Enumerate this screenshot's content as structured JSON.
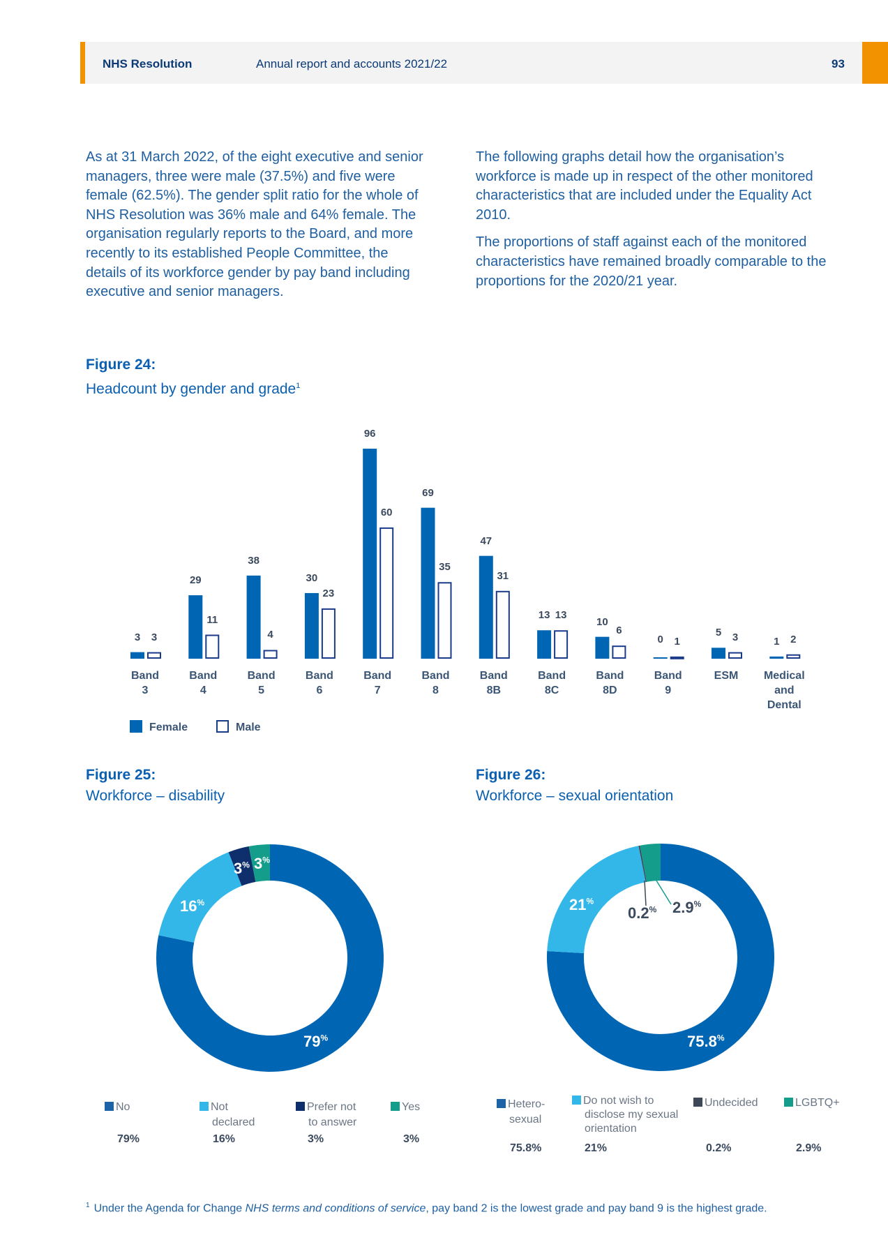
{
  "header": {
    "org": "NHS Resolution",
    "title": "Annual report and accounts 2021/22",
    "page": "93"
  },
  "intro": {
    "left": "As at 31 March 2022, of the eight executive and senior managers, three were male (37.5%) and five were female (62.5%). The gender split ratio for the whole of NHS Resolution was 36% male and 64% female. The organisation regularly reports to the Board, and more recently to its established People Committee, the details of its workforce gender by pay band including executive and senior managers.",
    "right1": "The following graphs detail how the organisation’s workforce is made up in respect of the other monitored characteristics that are included under the Equality Act 2010.",
    "right2": "The proportions of staff against each of the monitored characteristics have remained broadly comparable to the proportions for the 2020/21 year."
  },
  "fig24": {
    "label": "Figure 24:",
    "title": "Headcount by gender and grade",
    "sup": "1"
  },
  "fig25": {
    "label": "Figure 25:",
    "title": "Workforce – disability"
  },
  "fig26": {
    "label": "Figure 26:",
    "title": "Workforce – sexual orientation"
  },
  "chart_data": [
    {
      "type": "bar",
      "categories": [
        [
          "Band",
          "3"
        ],
        [
          "Band",
          "4"
        ],
        [
          "Band",
          "5"
        ],
        [
          "Band",
          "6"
        ],
        [
          "Band",
          "7"
        ],
        [
          "Band",
          "8"
        ],
        [
          "Band",
          "8B"
        ],
        [
          "Band",
          "8C"
        ],
        [
          "Band",
          "8D"
        ],
        [
          "Band",
          "9"
        ],
        [
          "ESM"
        ],
        [
          "Medical",
          "and",
          "Dental"
        ]
      ],
      "series": [
        {
          "name": "Female",
          "values": [
            3,
            29,
            38,
            30,
            96,
            69,
            47,
            13,
            10,
            0,
            5,
            1
          ],
          "color": "#0066b3",
          "fill": "solid"
        },
        {
          "name": "Male",
          "values": [
            3,
            11,
            4,
            23,
            60,
            35,
            31,
            13,
            6,
            1,
            3,
            2
          ],
          "color": "#1a3a8a",
          "fill": "outline"
        }
      ],
      "ylim": [
        0,
        96
      ],
      "legend": "bottom-left",
      "grid": false
    },
    {
      "type": "pie",
      "donut": true,
      "labels": [
        "No",
        "Not declared",
        "Prefer not to answer",
        "Yes"
      ],
      "values": [
        79,
        16,
        3,
        3
      ],
      "display": [
        "79%",
        "16%",
        "3%",
        "3%"
      ],
      "colors": [
        "#0066b3",
        "#33b7e9",
        "#0e2f6b",
        "#139d8a"
      ]
    },
    {
      "type": "pie",
      "donut": true,
      "labels": [
        "Hetero-sexual",
        "Do not wish to disclose my sexual orientation",
        "Undecided",
        "LGBTQ+"
      ],
      "values": [
        75.8,
        21,
        0.2,
        2.9
      ],
      "display": [
        "75.8%",
        "21%",
        "0.2%",
        "2.9%"
      ],
      "colors": [
        "#0066b3",
        "#33b7e9",
        "#3d4757",
        "#139d8a"
      ]
    }
  ],
  "donut_labels": {
    "d25": [
      "79",
      "16",
      "3",
      "3"
    ],
    "d26": [
      "75.8",
      "21",
      "0.2",
      "2.9"
    ],
    "pct_sign": "%"
  },
  "legend25": [
    {
      "l1": "No",
      "l2": ""
    },
    {
      "l1": "Not",
      "l2": "declared"
    },
    {
      "l1": "Prefer not",
      "l2": "to answer"
    },
    {
      "l1": "Yes",
      "l2": ""
    }
  ],
  "legend26": [
    {
      "l1": "Hetero-",
      "l2": "sexual",
      "l3": ""
    },
    {
      "l1": "Do not wish to",
      "l2": "disclose my sexual",
      "l3": "orientation"
    },
    {
      "l1": "Undecided",
      "l2": "",
      "l3": ""
    },
    {
      "l1": "LGBTQ+",
      "l2": "",
      "l3": ""
    }
  ],
  "footnote": {
    "sup": "1",
    "pre": "Under the Agenda for Change ",
    "italic": "NHS terms and conditions of service",
    "post": ", pay band 2 is the lowest grade and pay band 9 is the highest grade."
  }
}
